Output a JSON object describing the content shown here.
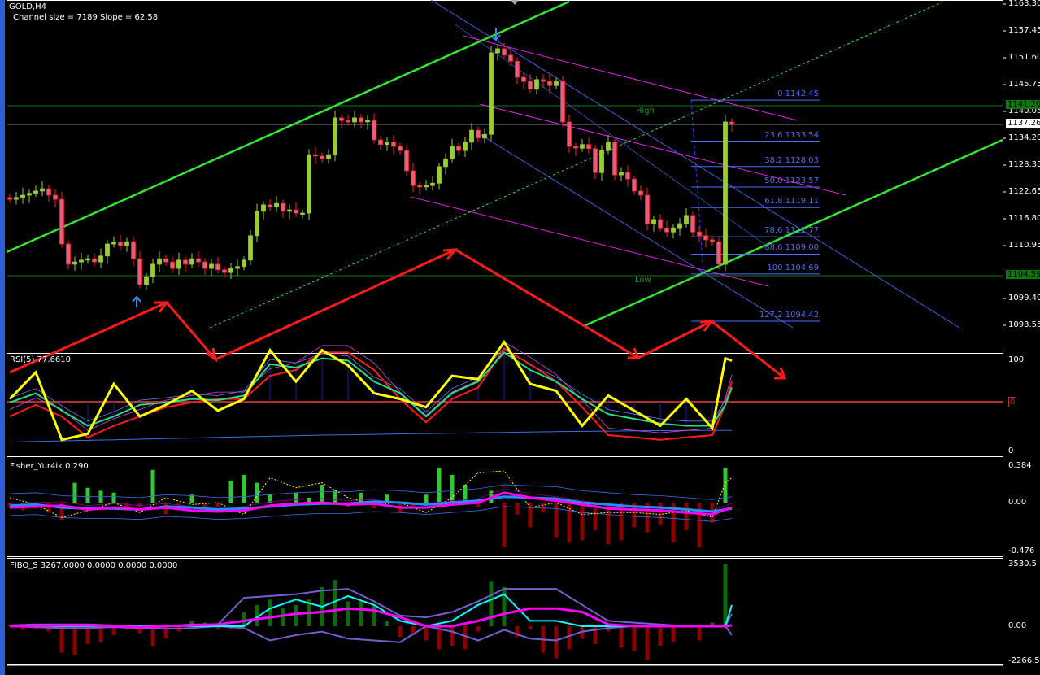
{
  "header": {
    "symbol": "GOLD,H4",
    "channel_info": "Channel size = 7189 Slope = 62.58"
  },
  "colors": {
    "bull": "#9acd32",
    "bear": "#e0607e",
    "bear_outline": "#ff2020",
    "channel": "#32e632",
    "fib": "#4a6cff",
    "zigzag": "#ff1a1a"
  },
  "price_axis": {
    "ticks": [
      "1163.30",
      "1157.45",
      "1151.60",
      "1145.75",
      "1140.05",
      "1134.20",
      "1128.35",
      "1122.65",
      "1116.80",
      "1110.95",
      "1099.40",
      "1093.55"
    ],
    "high_tag": "1141.20",
    "current_tag": "1137.26",
    "low_tag": "1104.59"
  },
  "levels": {
    "high_label": "High",
    "low_label": "Low",
    "high": 1141.2,
    "low": 1104.59,
    "current": 1137.26
  },
  "fibo": [
    {
      "text": "0 1142.45",
      "price": 1142.45
    },
    {
      "text": "23.6 1133.54",
      "price": 1133.54
    },
    {
      "text": "38.2 1128.03",
      "price": 1128.03
    },
    {
      "text": "50.0 1123.57",
      "price": 1123.57
    },
    {
      "text": "61.8 1119.11",
      "price": 1119.11
    },
    {
      "text": "78.6 1112.77",
      "price": 1112.77
    },
    {
      "text": "88.6 1109.00",
      "price": 1109.0
    },
    {
      "text": "100 1104.69",
      "price": 1104.69
    },
    {
      "text": "127.2 1094.42",
      "price": 1094.42
    }
  ],
  "candles_close": [
    1120.9,
    1121.3,
    1121.8,
    1122.2,
    1122.7,
    1123.2,
    1121.8,
    1120.9,
    1111.2,
    1106.8,
    1107.3,
    1107.7,
    1108.0,
    1107.3,
    1108.6,
    1111.2,
    1111.6,
    1110.9,
    1111.7,
    1108.0,
    1102.4,
    1104.1,
    1106.8,
    1108.0,
    1107.3,
    1105.9,
    1107.7,
    1106.8,
    1108.0,
    1107.3,
    1105.9,
    1106.8,
    1105.6,
    1105.0,
    1105.9,
    1106.3,
    1107.7,
    1113.0,
    1118.3,
    1119.7,
    1119.2,
    1120.0,
    1118.3,
    1118.6,
    1117.9,
    1117.9,
    1130.6,
    1130.3,
    1129.7,
    1130.6,
    1138.6,
    1138.0,
    1137.7,
    1138.6,
    1137.7,
    1138.0,
    1133.8,
    1132.8,
    1133.3,
    1132.4,
    1131.5,
    1127.1,
    1123.9,
    1123.6,
    1123.9,
    1124.4,
    1128.0,
    1129.7,
    1132.4,
    1131.5,
    1133.3,
    1135.9,
    1134.2,
    1135.0,
    1152.7,
    1153.6,
    1152.2,
    1150.9,
    1147.4,
    1146.5,
    1144.8,
    1146.9,
    1146.5,
    1145.6,
    1146.5,
    1137.7,
    1132.4,
    1132.0,
    1132.8,
    1131.9,
    1126.7,
    1131.5,
    1133.3,
    1126.2,
    1126.7,
    1125.3,
    1122.7,
    1121.8,
    1115.6,
    1116.5,
    1114.7,
    1113.8,
    1114.7,
    1115.6,
    1117.4,
    1113.8,
    1113.0,
    1112.1,
    1111.7,
    1106.8,
    1137.7,
    1137.3
  ],
  "panels": {
    "rsi": {
      "title": "RSI(5) 77.6610",
      "axis": [
        "100",
        "0",
        "0"
      ],
      "bars": [
        0,
        4,
        8,
        12,
        16,
        20,
        24,
        28,
        32,
        36,
        40,
        44,
        48,
        52,
        56,
        60,
        64,
        68,
        72,
        76,
        80,
        84,
        88,
        92,
        96,
        100,
        104,
        108,
        110,
        111
      ],
      "yellow": [
        45,
        68,
        10,
        15,
        58,
        30,
        40,
        52,
        35,
        45,
        87,
        60,
        87,
        74,
        50,
        45,
        38,
        65,
        62,
        94,
        58,
        52,
        22,
        48,
        35,
        22,
        45,
        20,
        80,
        78
      ],
      "green": [
        42,
        50,
        35,
        22,
        30,
        40,
        42,
        45,
        44,
        48,
        75,
        72,
        80,
        78,
        60,
        50,
        30,
        50,
        60,
        85,
        70,
        60,
        45,
        32,
        28,
        24,
        22,
        22,
        40,
        55
      ],
      "red": [
        30,
        40,
        30,
        12,
        22,
        30,
        38,
        42,
        45,
        45,
        65,
        70,
        85,
        85,
        70,
        45,
        25,
        45,
        55,
        88,
        75,
        60,
        38,
        14,
        12,
        10,
        12,
        14,
        40,
        60
      ],
      "baseline": [
        8,
        8.5,
        9,
        9.5,
        10,
        10.5,
        11,
        11.5,
        12,
        12.5,
        13,
        13.5,
        14,
        14.3,
        14.6,
        15,
        15.3,
        15.6,
        16,
        16.3,
        16.6,
        17,
        17.2,
        17.4,
        17.6,
        17.8,
        18,
        18,
        18,
        18
      ]
    },
    "fisher": {
      "title": "Fisher_Yur4ik 0.290",
      "axis": [
        "0.384",
        "0.00",
        "-0.476"
      ],
      "max": 0.384,
      "min": -0.476,
      "hist": [
        -0.05,
        -0.08,
        -0.06,
        -0.1,
        -0.18,
        0.2,
        0.15,
        0.12,
        0.1,
        -0.08,
        -0.05,
        0.33,
        -0.12,
        -0.06,
        0.08,
        -0.05,
        -0.04,
        0.22,
        0.28,
        0.2,
        0.08,
        -0.05,
        0.1,
        0.05,
        0.18,
        0.12,
        -0.04,
        0.1,
        -0.06,
        0.08,
        -0.1,
        -0.05,
        0.08,
        0.35,
        0.28,
        0.18,
        -0.05,
        0.12,
        -0.45,
        -0.12,
        -0.25,
        -0.1,
        -0.35,
        -0.4,
        -0.38,
        -0.28,
        -0.42,
        -0.38,
        -0.25,
        -0.3,
        -0.22,
        -0.4,
        -0.28,
        -0.45,
        -0.2,
        0.35
      ],
      "magenta": [
        -0.05,
        -0.04,
        -0.03,
        -0.07,
        -0.05,
        -0.07,
        -0.05,
        -0.08,
        -0.09,
        -0.08,
        -0.03,
        -0.01,
        0.0,
        -0.02,
        -0.01,
        -0.05,
        -0.05,
        -0.02,
        0.0,
        0.1,
        0.05,
        0.02,
        -0.02,
        -0.06,
        -0.07,
        -0.08,
        -0.1,
        -0.12,
        -0.07,
        -0.05
      ],
      "blue": [
        -0.03,
        -0.02,
        -0.05,
        -0.06,
        -0.06,
        -0.07,
        -0.04,
        -0.05,
        -0.07,
        -0.06,
        -0.04,
        -0.02,
        -0.01,
        -0.01,
        0.01,
        0.0,
        -0.02,
        0.0,
        0.02,
        0.06,
        0.05,
        0.04,
        0.0,
        -0.02,
        -0.04,
        -0.05,
        -0.07,
        -0.09,
        -0.07,
        -0.06
      ],
      "yellow": [
        0.05,
        -0.02,
        -0.15,
        -0.08,
        0.0,
        -0.1,
        0.05,
        -0.02,
        0.0,
        -0.12,
        0.25,
        0.15,
        0.2,
        0.05,
        -0.02,
        0.0,
        -0.1,
        0.05,
        0.3,
        0.32,
        -0.05,
        0.0,
        -0.12,
        -0.1,
        -0.1,
        -0.12,
        -0.08,
        -0.15,
        0.2,
        0.25
      ]
    },
    "fibo_s": {
      "title": "FIBO_S 3267.0000 0.0000 0.0000 0.0000",
      "axis": [
        "3530.5",
        "0.00",
        "-2266.5"
      ],
      "max": 3530.5,
      "min": -2266.5,
      "hist": [
        100,
        -200,
        -150,
        -300,
        -1500,
        -1600,
        -1000,
        -900,
        -500,
        -200,
        -400,
        -1100,
        -700,
        -300,
        300,
        200,
        -200,
        -200,
        800,
        1200,
        1500,
        1000,
        1200,
        1500,
        2200,
        2600,
        1400,
        1400,
        1200,
        300,
        -600,
        -500,
        -800,
        -1300,
        -1100,
        -1300,
        -300,
        2500,
        2200,
        -600,
        -200,
        -1500,
        -1800,
        -1300,
        -700,
        -1000,
        -300,
        -1200,
        -1400,
        -1900,
        -1100,
        -900,
        0,
        -800,
        200,
        3500
      ],
      "magenta": [
        0,
        0,
        50,
        50,
        0,
        -50,
        0,
        50,
        100,
        300,
        500,
        700,
        800,
        1000,
        900,
        500,
        0,
        0,
        300,
        700,
        1000,
        1000,
        800,
        100,
        0,
        0,
        0,
        0,
        0,
        50
      ],
      "cyan": [
        0,
        0,
        0,
        0,
        0,
        0,
        50,
        0,
        0,
        0,
        1000,
        1500,
        1100,
        1700,
        1200,
        300,
        0,
        300,
        1200,
        1800,
        300,
        300,
        0,
        0,
        0,
        0,
        0,
        0,
        0,
        1200
      ],
      "purple_upper": [
        50,
        100,
        100,
        100,
        50,
        0,
        0,
        100,
        100,
        1600,
        1700,
        1800,
        2000,
        2100,
        1400,
        600,
        500,
        800,
        1400,
        2100,
        2100,
        2100,
        1200,
        300,
        200,
        100,
        0,
        0,
        0,
        700
      ],
      "purple_lower": [
        0,
        -50,
        -100,
        -100,
        -50,
        -100,
        -150,
        -100,
        0,
        -100,
        -800,
        -500,
        -300,
        -700,
        -800,
        -900,
        0,
        -300,
        -800,
        -200,
        -700,
        -800,
        -300,
        -100,
        0,
        0,
        0,
        0,
        0,
        -500
      ]
    }
  }
}
